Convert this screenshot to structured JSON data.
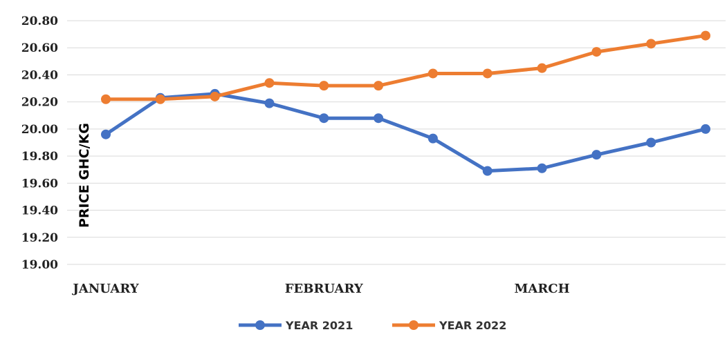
{
  "chart_data": {
    "type": "line",
    "title": "",
    "xlabel": "",
    "ylabel": "PRICE GHC/KG",
    "ylim": [
      19.0,
      20.8
    ],
    "ytick_step": 0.2,
    "y_tick_labels": [
      "19.00",
      "19.20",
      "19.40",
      "19.60",
      "19.80",
      "20.00",
      "20.20",
      "20.40",
      "20.60",
      "20.80"
    ],
    "x_tick_labels": [
      {
        "label": "JANUARY",
        "index": 0
      },
      {
        "label": "FEBRUARY",
        "index": 4
      },
      {
        "label": "MARCH",
        "index": 8
      }
    ],
    "grid": true,
    "legend_position": "bottom",
    "series": [
      {
        "name": "YEAR 2021",
        "color": "#4472C4",
        "values": [
          19.96,
          20.23,
          20.26,
          20.19,
          20.08,
          20.08,
          19.93,
          19.69,
          19.71,
          19.81,
          19.9,
          20.0
        ]
      },
      {
        "name": "YEAR 2022",
        "color": "#ED7D31",
        "values": [
          20.22,
          20.22,
          20.24,
          20.34,
          20.32,
          20.32,
          20.41,
          20.41,
          20.45,
          20.57,
          20.63,
          20.69
        ]
      }
    ]
  }
}
